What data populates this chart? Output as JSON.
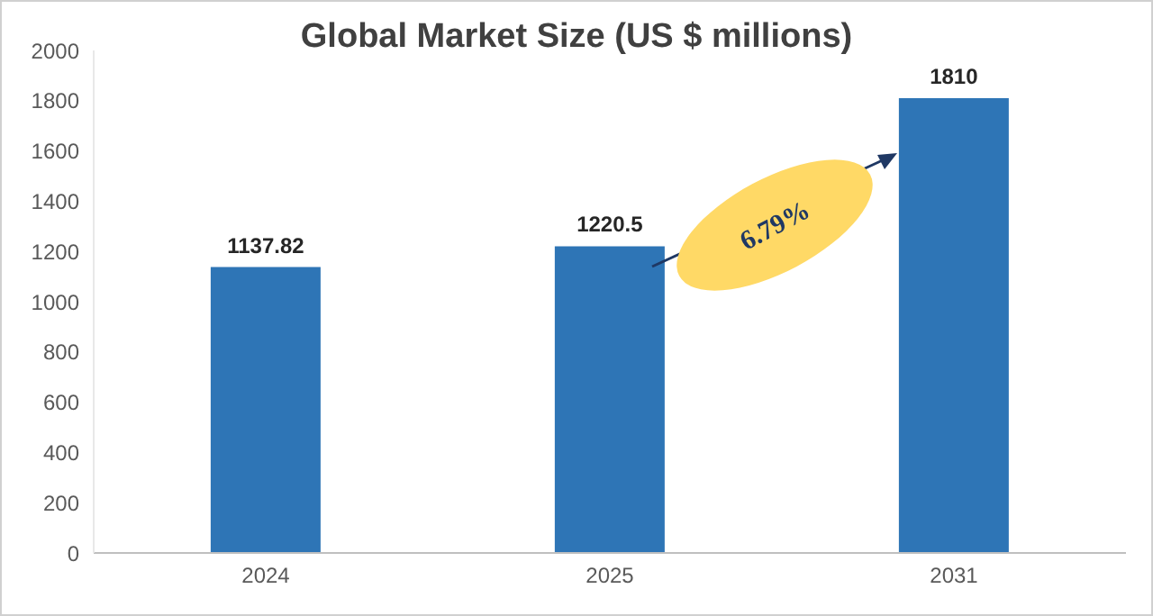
{
  "chart_data": {
    "type": "bar",
    "title": "Global Market Size (US $ millions)",
    "categories": [
      "2024",
      "2025",
      "2031"
    ],
    "values": [
      1137.82,
      1220.5,
      1810
    ],
    "color": "#2e75b6",
    "ylim": [
      0,
      2000
    ],
    "yticks": [
      0,
      200,
      400,
      600,
      800,
      1000,
      1200,
      1400,
      1600,
      1800,
      2000
    ],
    "data_labels": true,
    "grid": false,
    "annotations": [
      "6.79%"
    ]
  }
}
